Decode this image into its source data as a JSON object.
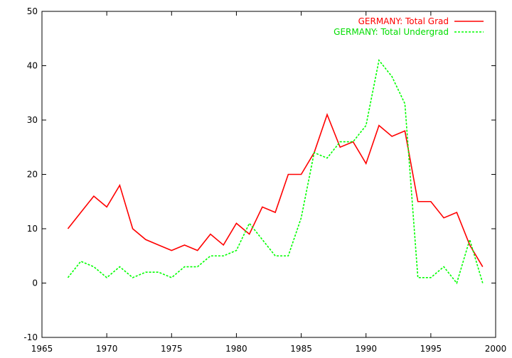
{
  "chart_data": {
    "type": "line",
    "xlim": [
      1965,
      2000
    ],
    "ylim": [
      -10,
      50
    ],
    "xticks": [
      1965,
      1970,
      1975,
      1980,
      1985,
      1990,
      1995,
      2000
    ],
    "yticks": [
      -10,
      0,
      10,
      20,
      30,
      40,
      50
    ],
    "x": [
      1967,
      1968,
      1969,
      1970,
      1971,
      1972,
      1973,
      1974,
      1975,
      1976,
      1977,
      1978,
      1979,
      1980,
      1981,
      1982,
      1983,
      1984,
      1985,
      1986,
      1987,
      1988,
      1989,
      1990,
      1991,
      1992,
      1993,
      1994,
      1995,
      1996,
      1997,
      1998,
      1999
    ],
    "series": [
      {
        "name": "GERMANY: Total Grad",
        "color": "#ff0000",
        "dash": "solid",
        "values": [
          10,
          13,
          16,
          14,
          18,
          10,
          8,
          7,
          6,
          7,
          6,
          9,
          7,
          11,
          9,
          14,
          13,
          20,
          20,
          24,
          31,
          25,
          26,
          22,
          29,
          27,
          28,
          15,
          15,
          12,
          13,
          7,
          3
        ]
      },
      {
        "name": "GERMANY: Total Undergrad",
        "color": "#00ff00",
        "dash": "dashed",
        "values": [
          1,
          4,
          3,
          1,
          3,
          1,
          2,
          2,
          1,
          3,
          3,
          5,
          5,
          6,
          11,
          8,
          5,
          5,
          12,
          24,
          23,
          26,
          26,
          29,
          41,
          38,
          33,
          1,
          1,
          3,
          0,
          8,
          0
        ]
      }
    ],
    "legend_position": "top-right",
    "grid": false
  }
}
